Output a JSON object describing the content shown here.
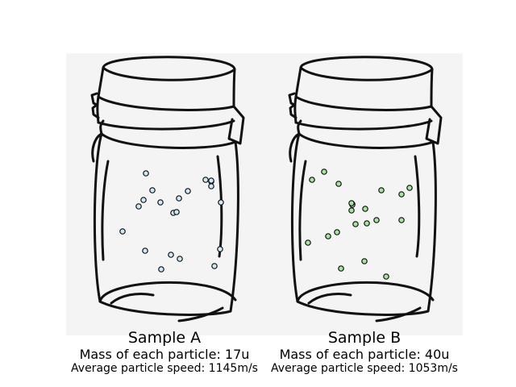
{
  "samples": [
    {
      "name": "Sample A",
      "mass_text": "Mass of each particle: 17u",
      "speed_text": "Average particle speed: 1145m/s",
      "particle_color": "#cfe8f8",
      "particle_count": 21
    },
    {
      "name": "Sample B",
      "mass_text": "Mass of each particle: 40u",
      "speed_text": "Average particle speed: 1053m/s",
      "particle_color": "#a6e4a0",
      "particle_count": 21
    }
  ],
  "panel_color": "#f4f4f4",
  "icons": [
    "jar-icon",
    "particle-icon"
  ]
}
